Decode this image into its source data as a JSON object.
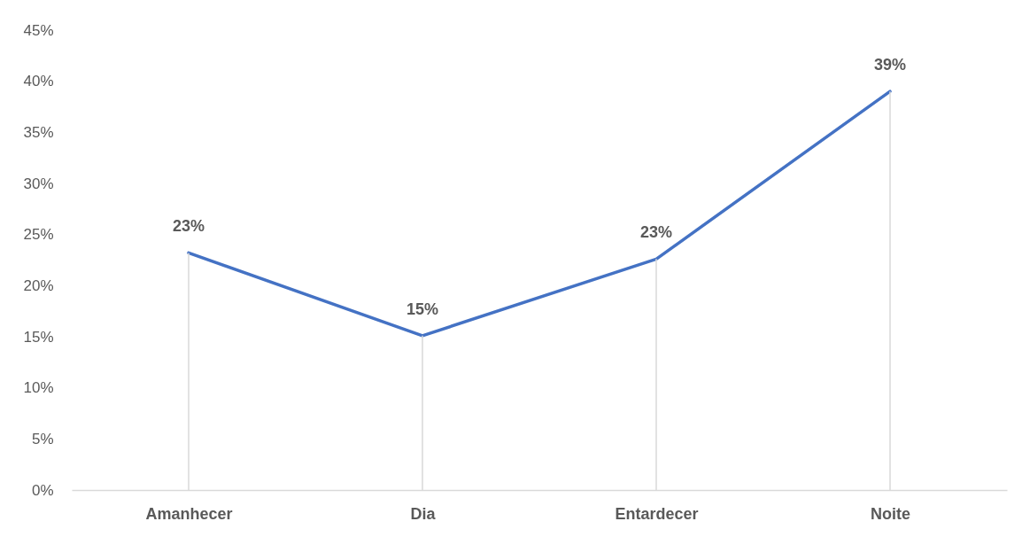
{
  "chart_data": {
    "type": "line",
    "categories": [
      "Amanhecer",
      "Dia",
      "Entardecer",
      "Noite"
    ],
    "series": [
      {
        "color": "#4472c4",
        "values": [
          23.2,
          15.1,
          22.6,
          39.0
        ],
        "value_labels": [
          "23%",
          "15%",
          "23%",
          "39%"
        ]
      }
    ],
    "ylim": [
      0,
      45
    ],
    "yticks": [
      {
        "value": 0,
        "label": "0%"
      },
      {
        "value": 5,
        "label": "5%"
      },
      {
        "value": 10,
        "label": "10%"
      },
      {
        "value": 15,
        "label": "15%"
      },
      {
        "value": 20,
        "label": "20%"
      },
      {
        "value": 25,
        "label": "25%"
      },
      {
        "value": 30,
        "label": "30%"
      },
      {
        "value": 35,
        "label": "35%"
      },
      {
        "value": 40,
        "label": "40%"
      },
      {
        "value": 45,
        "label": "45%"
      }
    ],
    "grid": "x"
  }
}
